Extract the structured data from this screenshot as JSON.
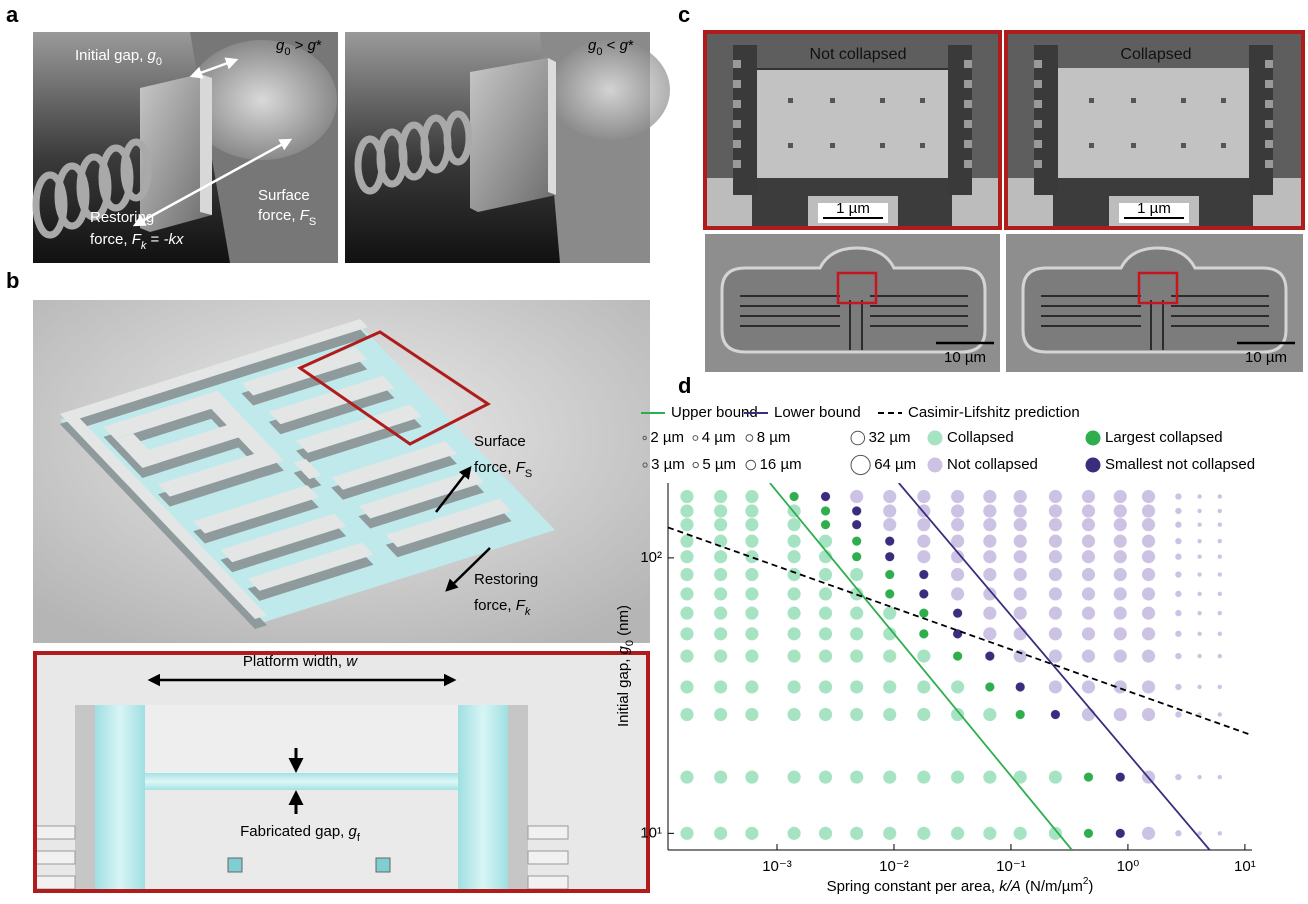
{
  "panels": {
    "a": {
      "label": "a",
      "left_condition": [
        "g",
        "0",
        " > ",
        "g",
        "*"
      ],
      "right_condition": [
        "g",
        "0",
        " < ",
        "g",
        "*"
      ],
      "initial_gap": [
        "Initial gap, ",
        "g",
        "0"
      ],
      "surface_force": [
        "Surface",
        "force, ",
        "F",
        "S"
      ],
      "restoring_force": [
        "Restoring",
        "force, ",
        "F",
        "k",
        " = ",
        "-kx"
      ]
    },
    "b": {
      "label": "b",
      "surface_force": [
        "Surface",
        "force, ",
        "F",
        "S"
      ],
      "restoring_force": [
        "Restoring",
        "force, ",
        "F",
        "k"
      ],
      "platform_width": [
        "Platform width, ",
        "w"
      ],
      "fabricated_gap": [
        "Fabricated gap, ",
        "g",
        "f"
      ]
    },
    "c": {
      "label": "c",
      "left_title": "Not collapsed",
      "right_title": "Collapsed",
      "scale_small": [
        "1 µm",
        "1 µm"
      ],
      "scale_large": [
        "10 µm",
        "10 µm"
      ]
    },
    "d": {
      "label": "d"
    }
  },
  "chart_data": {
    "type": "scatter",
    "x_label": [
      "Spring constant per area, ",
      "k/A",
      " (N/m/µm",
      "2",
      ")"
    ],
    "y_label": [
      "Initial gap, ",
      "g",
      "0",
      " (nm)"
    ],
    "log_x": true,
    "log_y": true,
    "xlim": [
      0.000117,
      11.5
    ],
    "ylim": [
      8.7,
      187
    ],
    "xticks": [
      {
        "value": 0.001,
        "label": "10⁻³"
      },
      {
        "value": 0.01,
        "label": "10⁻²"
      },
      {
        "value": 0.1,
        "label": "10⁻¹"
      },
      {
        "value": 1,
        "label": "10⁰"
      },
      {
        "value": 10,
        "label": "10¹"
      }
    ],
    "yticks": [
      {
        "value": 10,
        "label": "10¹"
      },
      {
        "value": 100,
        "label": "10²"
      }
    ],
    "size_legend": [
      {
        "size": 2,
        "label": "2 µm"
      },
      {
        "size": 3,
        "label": "3 µm"
      },
      {
        "size": 4,
        "label": "4 µm"
      },
      {
        "size": 5,
        "label": "5 µm"
      },
      {
        "size": 8,
        "label": "8 µm"
      },
      {
        "size": 16,
        "label": "16 µm"
      },
      {
        "size": 32,
        "label": "32 µm"
      },
      {
        "size": 64,
        "label": "64 µm"
      }
    ],
    "series": [
      {
        "name": "Upper bound",
        "mode": "line",
        "color": "#2fae4e",
        "dash": false,
        "x": [
          0.00087,
          0.332
        ],
        "y": [
          187,
          8.7
        ]
      },
      {
        "name": "Lower bound",
        "mode": "line",
        "color": "#3b2d7e",
        "dash": false,
        "x": [
          0.011,
          5.0
        ],
        "y": [
          187,
          8.7
        ]
      },
      {
        "name": "Casimir-Lifshitz prediction",
        "mode": "line",
        "color": "#000000",
        "dash": true,
        "x": [
          0.000117,
          11.5
        ],
        "y": [
          129,
          22.7
        ]
      },
      {
        "name": "Collapsed",
        "mode": "markers",
        "color": "#a6e3c2",
        "size": 32,
        "x": [
          0.00017,
          0.00033,
          0.00061,
          0.00017,
          0.00033,
          0.00061,
          0.0014,
          0.00017,
          0.00033,
          0.00061,
          0.0014,
          0.00017,
          0.00033,
          0.00061,
          0.0014,
          0.0026,
          0.00017,
          0.00033,
          0.00061,
          0.0014,
          0.0026,
          0.00017,
          0.00033,
          0.00061,
          0.0014,
          0.0026,
          0.0048,
          0.00017,
          0.00033,
          0.00061,
          0.0014,
          0.0026,
          0.0048,
          0.00017,
          0.00033,
          0.00061,
          0.0014,
          0.0026,
          0.0048,
          0.0092,
          0.00017,
          0.00033,
          0.00061,
          0.0014,
          0.0026,
          0.0048,
          0.0092,
          0.00017,
          0.00033,
          0.00061,
          0.0014,
          0.0026,
          0.0048,
          0.0092,
          0.018,
          0.00017,
          0.00033,
          0.00061,
          0.0014,
          0.0026,
          0.0048,
          0.0092,
          0.018,
          0.035,
          0.00017,
          0.00033,
          0.00061,
          0.0014,
          0.0026,
          0.0048,
          0.0092,
          0.018,
          0.035,
          0.066,
          0.00017,
          0.00033,
          0.00061,
          0.0014,
          0.0026,
          0.0048,
          0.0092,
          0.018,
          0.035,
          0.066,
          0.12,
          0.24,
          0.00017,
          0.00033,
          0.00061,
          0.0014,
          0.0026,
          0.0048,
          0.0092,
          0.018,
          0.035,
          0.066,
          0.12,
          0.24
        ],
        "y": [
          167,
          167,
          167,
          148,
          148,
          148,
          148,
          132,
          132,
          132,
          132,
          115,
          115,
          115,
          115,
          115,
          101,
          101,
          101,
          101,
          101,
          87,
          87,
          87,
          87,
          87,
          87,
          74,
          74,
          74,
          74,
          74,
          74,
          63,
          63,
          63,
          63,
          63,
          63,
          63,
          53,
          53,
          53,
          53,
          53,
          53,
          53,
          44,
          44,
          44,
          44,
          44,
          44,
          44,
          44,
          34,
          34,
          34,
          34,
          34,
          34,
          34,
          34,
          34,
          27,
          27,
          27,
          27,
          27,
          27,
          27,
          27,
          27,
          27,
          16,
          16,
          16,
          16,
          16,
          16,
          16,
          16,
          16,
          16,
          16,
          16,
          10,
          10,
          10,
          10,
          10,
          10,
          10,
          10,
          10,
          10,
          10,
          10
        ]
      },
      {
        "name": "Not collapsed",
        "mode": "markers",
        "color": "#cbc2e4",
        "x": [
          0.0048,
          0.0092,
          0.018,
          0.035,
          0.066,
          0.12,
          0.24,
          0.46,
          0.86,
          1.5,
          2.7,
          4.1,
          6.1,
          0.0092,
          0.018,
          0.035,
          0.066,
          0.12,
          0.24,
          0.46,
          0.86,
          1.5,
          2.7,
          4.1,
          6.1,
          0.0092,
          0.018,
          0.035,
          0.066,
          0.12,
          0.24,
          0.46,
          0.86,
          1.5,
          2.7,
          4.1,
          6.1,
          0.018,
          0.035,
          0.066,
          0.12,
          0.24,
          0.46,
          0.86,
          1.5,
          2.7,
          4.1,
          6.1,
          0.018,
          0.035,
          0.066,
          0.12,
          0.24,
          0.46,
          0.86,
          1.5,
          2.7,
          4.1,
          6.1,
          0.035,
          0.066,
          0.12,
          0.24,
          0.46,
          0.86,
          1.5,
          2.7,
          4.1,
          6.1,
          0.035,
          0.066,
          0.12,
          0.24,
          0.46,
          0.86,
          1.5,
          2.7,
          4.1,
          6.1,
          0.066,
          0.12,
          0.24,
          0.46,
          0.86,
          1.5,
          2.7,
          4.1,
          6.1,
          0.066,
          0.12,
          0.24,
          0.46,
          0.86,
          1.5,
          2.7,
          4.1,
          6.1,
          0.12,
          0.24,
          0.46,
          0.86,
          1.5,
          2.7,
          4.1,
          6.1,
          0.24,
          0.46,
          0.86,
          1.5,
          2.7,
          4.1,
          6.1,
          0.46,
          0.86,
          1.5,
          2.7,
          4.1,
          6.1,
          1.5,
          2.7,
          4.1,
          6.1,
          1.5,
          2.7,
          4.1,
          6.1
        ],
        "y": [
          167,
          167,
          167,
          167,
          167,
          167,
          167,
          167,
          167,
          167,
          167,
          167,
          167,
          148,
          148,
          148,
          148,
          148,
          148,
          148,
          148,
          148,
          148,
          148,
          148,
          132,
          132,
          132,
          132,
          132,
          132,
          132,
          132,
          132,
          132,
          132,
          132,
          115,
          115,
          115,
          115,
          115,
          115,
          115,
          115,
          115,
          115,
          115,
          101,
          101,
          101,
          101,
          101,
          101,
          101,
          101,
          101,
          101,
          101,
          87,
          87,
          87,
          87,
          87,
          87,
          87,
          87,
          87,
          87,
          74,
          74,
          74,
          74,
          74,
          74,
          74,
          74,
          74,
          74,
          63,
          63,
          63,
          63,
          63,
          63,
          63,
          63,
          63,
          53,
          53,
          53,
          53,
          53,
          53,
          53,
          53,
          53,
          44,
          44,
          44,
          44,
          44,
          44,
          44,
          44,
          34,
          34,
          34,
          34,
          34,
          34,
          34,
          27,
          27,
          27,
          27,
          27,
          27,
          16,
          16,
          16,
          16,
          10,
          10,
          10,
          10
        ],
        "sizes": [
          32,
          32,
          32,
          32,
          32,
          32,
          32,
          32,
          32,
          32,
          8,
          4,
          4,
          32,
          32,
          32,
          32,
          32,
          32,
          32,
          32,
          32,
          8,
          4,
          4,
          32,
          32,
          32,
          32,
          32,
          32,
          32,
          32,
          32,
          8,
          4,
          4,
          32,
          32,
          32,
          32,
          32,
          32,
          32,
          32,
          8,
          4,
          4,
          32,
          32,
          32,
          32,
          32,
          32,
          32,
          32,
          8,
          4,
          4,
          32,
          32,
          32,
          32,
          32,
          32,
          32,
          8,
          4,
          4,
          32,
          32,
          32,
          32,
          32,
          32,
          32,
          8,
          4,
          4,
          32,
          32,
          32,
          32,
          32,
          32,
          8,
          4,
          4,
          32,
          32,
          32,
          32,
          32,
          32,
          8,
          4,
          4,
          32,
          32,
          32,
          32,
          32,
          8,
          4,
          4,
          32,
          32,
          32,
          32,
          8,
          4,
          4,
          32,
          32,
          32,
          8,
          4,
          4,
          32,
          8,
          4,
          4,
          32,
          8,
          4,
          4
        ]
      },
      {
        "name": "Largest collapsed",
        "mode": "markers",
        "color": "#2fae4e",
        "size": 16,
        "x": [
          0.0014,
          0.0026,
          0.0026,
          0.0048,
          0.0048,
          0.0092,
          0.0092,
          0.018,
          0.018,
          0.035,
          0.066,
          0.12,
          0.46,
          0.46
        ],
        "y": [
          167,
          148,
          132,
          115,
          101,
          87,
          74,
          63,
          53,
          44,
          34,
          27,
          16,
          10
        ]
      },
      {
        "name": "Smallest not collapsed",
        "mode": "markers",
        "color": "#3b2d7e",
        "size": 16,
        "x": [
          0.0026,
          0.0048,
          0.0048,
          0.0092,
          0.0092,
          0.018,
          0.018,
          0.035,
          0.035,
          0.066,
          0.12,
          0.24,
          0.86,
          0.86
        ],
        "y": [
          167,
          148,
          132,
          115,
          101,
          87,
          74,
          63,
          53,
          44,
          34,
          27,
          16,
          10
        ]
      }
    ]
  }
}
